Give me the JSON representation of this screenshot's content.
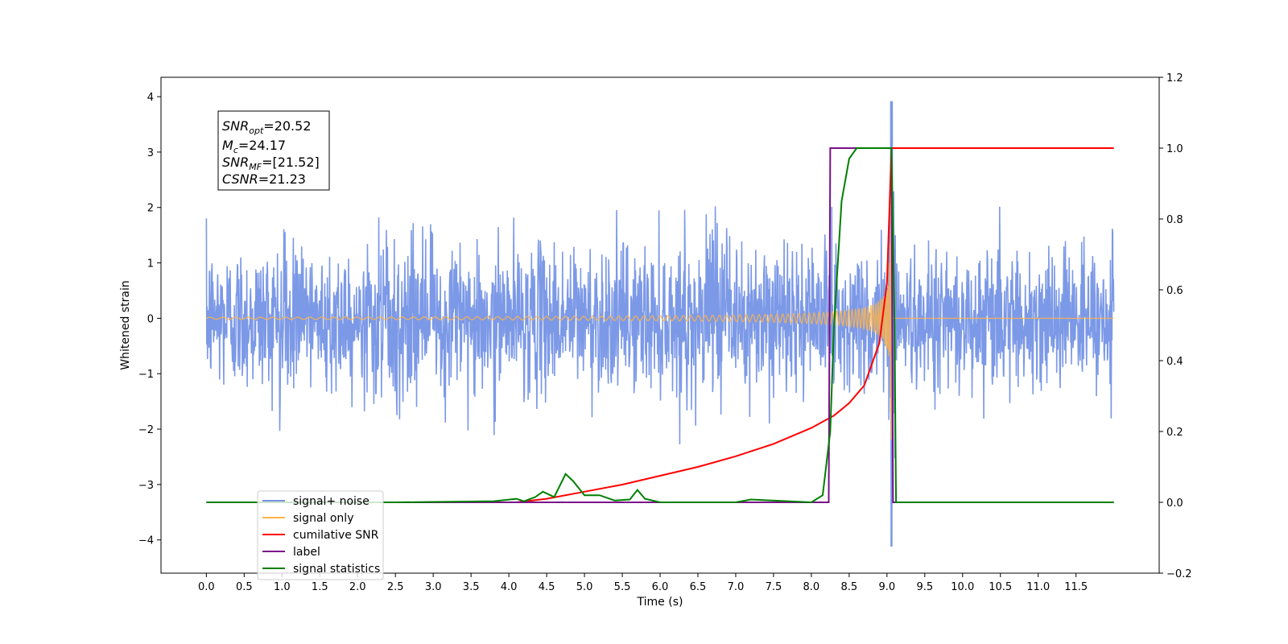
{
  "chart_data": {
    "type": "line",
    "xlabel": "Time (s)",
    "ylabel": "Whitened strain",
    "xlim": [
      -0.6,
      12.6
    ],
    "ylim": [
      -4.6,
      4.35
    ],
    "y2lim": [
      -0.2,
      1.2
    ],
    "grid": false,
    "legend_position": "lower-left",
    "x_ticks": [
      0.0,
      0.5,
      1.0,
      1.5,
      2.0,
      2.5,
      3.0,
      3.5,
      4.0,
      4.5,
      5.0,
      5.5,
      6.0,
      6.5,
      7.0,
      7.5,
      8.0,
      8.5,
      9.0,
      9.5,
      10.0,
      10.5,
      11.0,
      11.5
    ],
    "x_tick_labels": [
      "0.0",
      "0.5",
      "1.0",
      "1.5",
      "2.0",
      "2.5",
      "3.0",
      "3.5",
      "4.0",
      "4.5",
      "5.0",
      "5.5",
      "6.0",
      "6.5",
      "7.0",
      "7.5",
      "8.0",
      "8.5",
      "9.0",
      "9.5",
      "10.0",
      "10.5",
      "11.0",
      "11.5"
    ],
    "y_ticks": [
      4,
      3,
      2,
      1,
      0,
      -1,
      -2,
      -3,
      -4
    ],
    "y_tick_labels": [
      "4",
      "3",
      "2",
      "1",
      "0",
      "−1",
      "−2",
      "−3",
      "−4"
    ],
    "y2_ticks": [
      1.2,
      1.0,
      0.8,
      0.6,
      0.4,
      0.2,
      0.0,
      -0.2
    ],
    "y2_tick_labels": [
      "1.2",
      "1.0",
      "0.8",
      "0.6",
      "0.4",
      "0.2",
      "0.0",
      "−0.2"
    ],
    "annotation": {
      "snr_opt": {
        "base": "SNR",
        "sub": "opt",
        "value": "=20.52"
      },
      "mc": {
        "base": "M",
        "sub": "c",
        "value": "=24.17"
      },
      "snr_mf": {
        "base": "SNR",
        "sub": "MF",
        "value": "=[21.52]"
      },
      "csnr": {
        "base": "CSNR",
        "value": "=21.23"
      }
    },
    "series": [
      {
        "name": "signal+ noise",
        "axis": "left",
        "color": "#7593e6",
        "kind": "noise",
        "x_range": [
          0.0,
          12.0
        ],
        "envelope": 2.0,
        "outlier_max": 2.5,
        "outlier_min": -2.3,
        "peak_at": 9.06,
        "peak_max": 3.92,
        "peak_min": -4.12
      },
      {
        "name": "signal only",
        "axis": "left",
        "color": "#ffb347",
        "kind": "chirp",
        "x_range": [
          0.0,
          12.0
        ],
        "merger_time": 9.06,
        "peak_amplitude": 3.1,
        "start_amplitude": 0.02
      },
      {
        "name": "cumilative SNR",
        "axis": "right",
        "color": "#ff0000",
        "x": [
          4.1,
          4.5,
          5.0,
          5.5,
          6.0,
          6.5,
          7.0,
          7.5,
          8.0,
          8.3,
          8.5,
          8.7,
          8.9,
          9.0,
          9.06,
          9.1,
          10.0,
          11.0,
          12.0
        ],
        "y": [
          0.0,
          0.01,
          0.03,
          0.05,
          0.075,
          0.1,
          0.13,
          0.165,
          0.21,
          0.245,
          0.28,
          0.33,
          0.45,
          0.62,
          1.0,
          1.0,
          1.0,
          1.0,
          1.0
        ]
      },
      {
        "name": "label",
        "axis": "right",
        "color": "#7b0f8a",
        "x": [
          0.0,
          8.23,
          8.25,
          9.06,
          9.08,
          12.0
        ],
        "y": [
          0.0,
          0.0,
          1.0,
          1.0,
          0.0,
          0.0
        ]
      },
      {
        "name": "signal statistics",
        "axis": "right",
        "color": "#008000",
        "x": [
          0.0,
          2.5,
          3.8,
          4.1,
          4.2,
          4.35,
          4.45,
          4.6,
          4.75,
          4.85,
          5.0,
          5.2,
          5.4,
          5.6,
          5.7,
          5.8,
          6.0,
          7.0,
          7.2,
          8.0,
          8.15,
          8.25,
          8.3,
          8.4,
          8.5,
          8.6,
          8.8,
          9.0,
          9.06,
          9.1,
          9.12,
          12.0
        ],
        "y": [
          0.0,
          0.0,
          0.003,
          0.01,
          0.003,
          0.015,
          0.03,
          0.015,
          0.08,
          0.06,
          0.02,
          0.02,
          0.005,
          0.008,
          0.035,
          0.01,
          0.0,
          0.0,
          0.008,
          0.0,
          0.02,
          0.2,
          0.5,
          0.85,
          0.97,
          1.0,
          1.0,
          1.0,
          1.0,
          0.5,
          0.0,
          0.0
        ]
      }
    ]
  },
  "legend": {
    "items": [
      {
        "label": "signal+ noise",
        "color": "#7593e6"
      },
      {
        "label": "signal only",
        "color": "#ffb347"
      },
      {
        "label": "cumilative SNR",
        "color": "#ff0000"
      },
      {
        "label": "label",
        "color": "#7b0f8a"
      },
      {
        "label": "signal statistics",
        "color": "#008000"
      }
    ]
  }
}
